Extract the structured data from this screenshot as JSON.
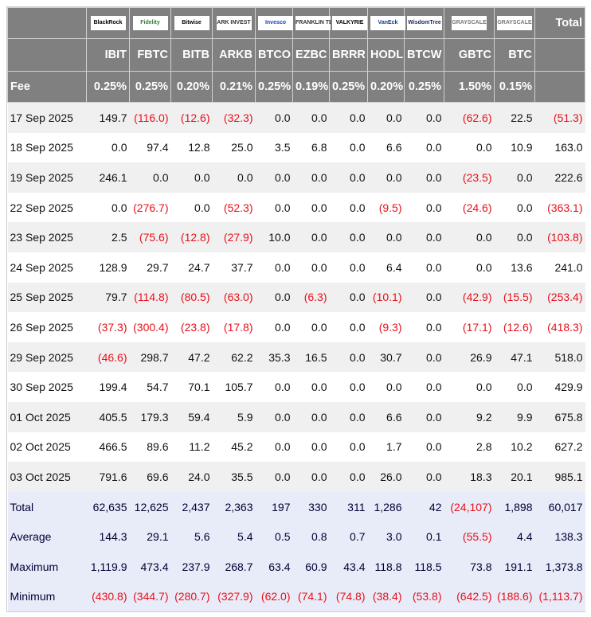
{
  "header": {
    "total_label": "Total",
    "fee_label": "Fee"
  },
  "funds": [
    {
      "ticker": "IBIT",
      "fee": "0.25%",
      "logo": "BlackRock",
      "logo_color": "#000000"
    },
    {
      "ticker": "FBTC",
      "fee": "0.25%",
      "logo": "Fidelity",
      "logo_color": "#2e7d32"
    },
    {
      "ticker": "BITB",
      "fee": "0.20%",
      "logo": "Bitwise",
      "logo_color": "#000000"
    },
    {
      "ticker": "ARKB",
      "fee": "0.21%",
      "logo": "ARK INVEST",
      "logo_color": "#333333"
    },
    {
      "ticker": "BTCO",
      "fee": "0.25%",
      "logo": "Invesco",
      "logo_color": "#1a3ccf"
    },
    {
      "ticker": "EZBC",
      "fee": "0.19%",
      "logo": "FRANKLIN TEMPLETON",
      "logo_color": "#333333"
    },
    {
      "ticker": "BRRR",
      "fee": "0.25%",
      "logo": "VALKYRIE",
      "logo_color": "#000000"
    },
    {
      "ticker": "HODL",
      "fee": "0.20%",
      "logo": "VanEck",
      "logo_color": "#1a3a8f"
    },
    {
      "ticker": "BTCW",
      "fee": "0.25%",
      "logo": "WisdomTree",
      "logo_color": "#1a2a5a"
    },
    {
      "ticker": "GBTC",
      "fee": "1.50%",
      "logo": "GRAYSCALE",
      "logo_color": "#777777"
    },
    {
      "ticker": "BTC",
      "fee": "0.15%",
      "logo": "GRAYSCALE",
      "logo_color": "#777777"
    }
  ],
  "rows": [
    {
      "date": "17 Sep 2025",
      "values": [
        "149.7",
        "(116.0)",
        "(12.6)",
        "(32.3)",
        "0.0",
        "0.0",
        "0.0",
        "0.0",
        "0.0",
        "(62.6)",
        "22.5"
      ],
      "total": "(51.3)"
    },
    {
      "date": "18 Sep 2025",
      "values": [
        "0.0",
        "97.4",
        "12.8",
        "25.0",
        "3.5",
        "6.8",
        "0.0",
        "6.6",
        "0.0",
        "0.0",
        "10.9"
      ],
      "total": "163.0"
    },
    {
      "date": "19 Sep 2025",
      "values": [
        "246.1",
        "0.0",
        "0.0",
        "0.0",
        "0.0",
        "0.0",
        "0.0",
        "0.0",
        "0.0",
        "(23.5)",
        "0.0"
      ],
      "total": "222.6"
    },
    {
      "date": "22 Sep 2025",
      "values": [
        "0.0",
        "(276.7)",
        "0.0",
        "(52.3)",
        "0.0",
        "0.0",
        "0.0",
        "(9.5)",
        "0.0",
        "(24.6)",
        "0.0"
      ],
      "total": "(363.1)"
    },
    {
      "date": "23 Sep 2025",
      "values": [
        "2.5",
        "(75.6)",
        "(12.8)",
        "(27.9)",
        "10.0",
        "0.0",
        "0.0",
        "0.0",
        "0.0",
        "0.0",
        "0.0"
      ],
      "total": "(103.8)"
    },
    {
      "date": "24 Sep 2025",
      "values": [
        "128.9",
        "29.7",
        "24.7",
        "37.7",
        "0.0",
        "0.0",
        "0.0",
        "6.4",
        "0.0",
        "0.0",
        "13.6"
      ],
      "total": "241.0"
    },
    {
      "date": "25 Sep 2025",
      "values": [
        "79.7",
        "(114.8)",
        "(80.5)",
        "(63.0)",
        "0.0",
        "(6.3)",
        "0.0",
        "(10.1)",
        "0.0",
        "(42.9)",
        "(15.5)"
      ],
      "total": "(253.4)"
    },
    {
      "date": "26 Sep 2025",
      "values": [
        "(37.3)",
        "(300.4)",
        "(23.8)",
        "(17.8)",
        "0.0",
        "0.0",
        "0.0",
        "(9.3)",
        "0.0",
        "(17.1)",
        "(12.6)"
      ],
      "total": "(418.3)"
    },
    {
      "date": "29 Sep 2025",
      "values": [
        "(46.6)",
        "298.7",
        "47.2",
        "62.2",
        "35.3",
        "16.5",
        "0.0",
        "30.7",
        "0.0",
        "26.9",
        "47.1"
      ],
      "total": "518.0"
    },
    {
      "date": "30 Sep 2025",
      "values": [
        "199.4",
        "54.7",
        "70.1",
        "105.7",
        "0.0",
        "0.0",
        "0.0",
        "0.0",
        "0.0",
        "0.0",
        "0.0"
      ],
      "total": "429.9"
    },
    {
      "date": "01 Oct 2025",
      "values": [
        "405.5",
        "179.3",
        "59.4",
        "5.9",
        "0.0",
        "0.0",
        "0.0",
        "6.6",
        "0.0",
        "9.2",
        "9.9"
      ],
      "total": "675.8"
    },
    {
      "date": "02 Oct 2025",
      "values": [
        "466.5",
        "89.6",
        "11.2",
        "45.2",
        "0.0",
        "0.0",
        "0.0",
        "1.7",
        "0.0",
        "2.8",
        "10.2"
      ],
      "total": "627.2"
    },
    {
      "date": "03 Oct 2025",
      "values": [
        "791.6",
        "69.6",
        "24.0",
        "35.5",
        "0.0",
        "0.0",
        "0.0",
        "26.0",
        "0.0",
        "18.3",
        "20.1"
      ],
      "total": "985.1"
    }
  ],
  "summary": [
    {
      "label": "Total",
      "values": [
        "62,635",
        "12,625",
        "2,437",
        "2,363",
        "197",
        "330",
        "311",
        "1,286",
        "42",
        "(24,107)",
        "1,898"
      ],
      "total": "60,017"
    },
    {
      "label": "Average",
      "values": [
        "144.3",
        "29.1",
        "5.6",
        "5.4",
        "0.5",
        "0.8",
        "0.7",
        "3.0",
        "0.1",
        "(55.5)",
        "4.4"
      ],
      "total": "138.3"
    },
    {
      "label": "Maximum",
      "values": [
        "1,119.9",
        "473.4",
        "237.9",
        "268.7",
        "63.4",
        "60.9",
        "43.4",
        "118.8",
        "118.5",
        "73.8",
        "191.1"
      ],
      "total": "1,373.8"
    },
    {
      "label": "Minimum",
      "values": [
        "(430.8)",
        "(344.7)",
        "(280.7)",
        "(327.9)",
        "(62.0)",
        "(74.1)",
        "(74.8)",
        "(38.4)",
        "(53.8)",
        "(642.5)",
        "(188.6)"
      ],
      "total": "(1,113.7)"
    }
  ],
  "colors": {
    "header_bg": "#808080",
    "negative": "#e8101a",
    "summary_bg": "#e8ecf8"
  }
}
